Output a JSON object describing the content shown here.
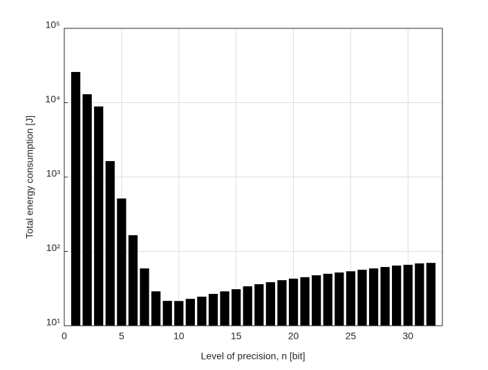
{
  "chart_data": {
    "type": "bar",
    "x_label": "Level of precision, n [bit]",
    "y_label": "Total energy consumption [J]",
    "x": [
      1,
      2,
      3,
      4,
      5,
      6,
      7,
      8,
      9,
      10,
      11,
      12,
      13,
      14,
      15,
      16,
      17,
      18,
      19,
      20,
      21,
      22,
      23,
      24,
      25,
      26,
      27,
      28,
      29,
      30,
      31,
      32
    ],
    "values": [
      25900,
      13000,
      8900,
      1640,
      515,
      165,
      59,
      29,
      21.6,
      21.5,
      23,
      24.6,
      26.8,
      29,
      31,
      33.9,
      36.2,
      38.5,
      41,
      43,
      45,
      47.7,
      50,
      52,
      54,
      56.6,
      59,
      61.7,
      64.5,
      66,
      69,
      70
    ],
    "color": "#000000",
    "log_y": true,
    "grid": true,
    "xlim": [
      0,
      33
    ],
    "xticks": [
      0,
      5,
      10,
      15,
      20,
      25,
      30
    ],
    "ylim": [
      10,
      100000
    ],
    "yticks": [
      {
        "value": 10,
        "label": "10¹"
      },
      {
        "value": 100,
        "label": "10²"
      },
      {
        "value": 1000,
        "label": "10³"
      },
      {
        "value": 10000,
        "label": "10⁴"
      },
      {
        "value": 100000,
        "label": "10⁵"
      }
    ]
  }
}
